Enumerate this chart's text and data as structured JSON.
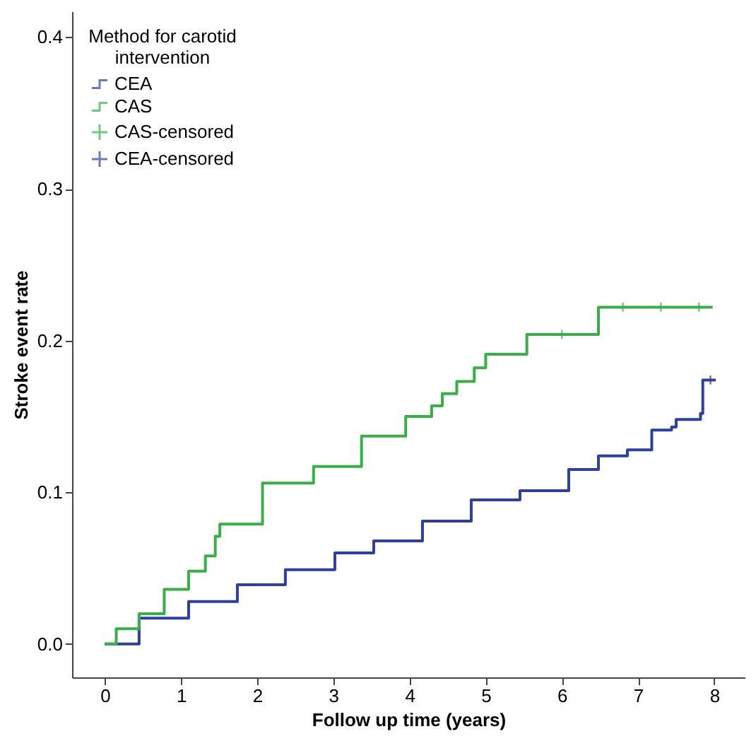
{
  "chart_data": {
    "type": "step",
    "xlabel": "Follow up time (years)",
    "ylabel": "Stroke event rate",
    "legend_title": "Method for carotid intervention",
    "legend": "top left",
    "grid": false,
    "xlim": [
      -0.43,
      8.4
    ],
    "ylim": [
      -0.022,
      0.417
    ],
    "xticks": [
      0,
      1,
      2,
      3,
      4,
      5,
      6,
      7,
      8
    ],
    "yticks": [
      {
        "value": 0,
        "label": "0.0"
      },
      0.1,
      0.2,
      0.3,
      0.4
    ],
    "series": [
      {
        "name": "CEA",
        "color": "#2e3f9e",
        "x": [
          0,
          0.45,
          1.1,
          1.74,
          2.37,
          3.02,
          3.53,
          4.17,
          4.81,
          5.45,
          6.09,
          6.48,
          6.86,
          7.18,
          7.44,
          7.5,
          7.82,
          7.85,
          8.02
        ],
        "values": [
          0,
          0.017,
          0.028,
          0.039,
          0.049,
          0.06,
          0.068,
          0.081,
          0.095,
          0.101,
          0.115,
          0.124,
          0.128,
          0.141,
          0.143,
          0.148,
          0.152,
          0.174,
          0.174
        ]
      },
      {
        "name": "CAS",
        "color": "#3aae48",
        "x": [
          0,
          0.15,
          0.45,
          0.78,
          1.1,
          1.32,
          1.45,
          1.51,
          2.07,
          2.74,
          3.37,
          3.95,
          4.29,
          4.43,
          4.62,
          4.85,
          5.0,
          5.54,
          6.48,
          7.98
        ],
        "values": [
          0,
          0.01,
          0.02,
          0.036,
          0.048,
          0.058,
          0.071,
          0.079,
          0.106,
          0.117,
          0.137,
          0.15,
          0.157,
          0.165,
          0.173,
          0.182,
          0.191,
          0.204,
          0.222,
          0.222
        ]
      },
      {
        "name": "CAS-censored",
        "type": "scatter",
        "marker": "cross",
        "color": "#3aae48",
        "x": [
          6.0,
          6.8,
          7.3,
          7.8
        ],
        "values": [
          0.204,
          0.222,
          0.222,
          0.222
        ]
      },
      {
        "name": "CEA-censored",
        "type": "scatter",
        "marker": "cross",
        "color": "#2e3f9e",
        "x": [
          7.95
        ],
        "values": [
          0.174
        ]
      }
    ]
  }
}
